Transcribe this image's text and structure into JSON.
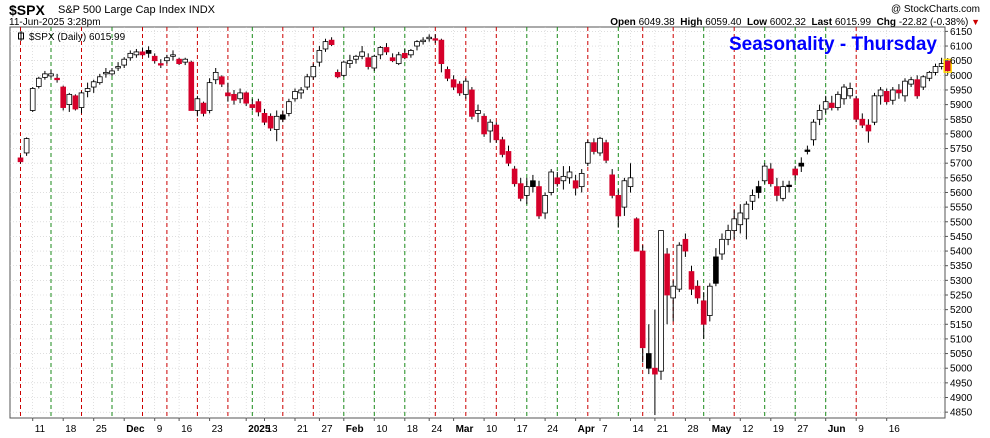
{
  "header": {
    "ticker": "$SPX",
    "name": "S&P 500 Large Cap Index",
    "exchange": "INDX",
    "date": "11-Jun-2025 3:28pm",
    "credit": "@ StockCharts.com",
    "open_label": "Open",
    "open": "6049.38",
    "high_label": "High",
    "high": "6059.40",
    "low_label": "Low",
    "low": "6002.32",
    "last_label": "Last",
    "last": "6015.99",
    "chg_label": "Chg",
    "chg": "-22.82 (-0.38%)"
  },
  "legend": {
    "text": "$SPX (Daily) 6015.99"
  },
  "colors": {
    "up": "#ffffff",
    "down": "#d6002a",
    "neutral": "#000000",
    "grid": "#cccccc",
    "green_line": "#1a8a1a",
    "red_line": "#cc0000",
    "title": "#0000ff"
  },
  "chart_data": {
    "type": "candlestick",
    "title": "Seasonality - Thursday",
    "ylim": [
      4830,
      6165
    ],
    "y_ticks": [
      4850,
      4900,
      4950,
      5000,
      5050,
      5100,
      5150,
      5200,
      5250,
      5300,
      5350,
      5400,
      5450,
      5500,
      5550,
      5600,
      5650,
      5700,
      5750,
      5800,
      5850,
      5900,
      5950,
      6000,
      6050,
      6100,
      6150
    ],
    "x_ticks": [
      {
        "label": "11",
        "bold": false
      },
      {
        "label": "18",
        "bold": false
      },
      {
        "label": "25",
        "bold": false
      },
      {
        "label": "Dec",
        "bold": true
      },
      {
        "label": "9",
        "bold": false
      },
      {
        "label": "16",
        "bold": false
      },
      {
        "label": "23",
        "bold": false
      },
      {
        "label": "2025",
        "bold": true
      },
      {
        "label": "13",
        "bold": false
      },
      {
        "label": "21",
        "bold": false
      },
      {
        "label": "27",
        "bold": false
      },
      {
        "label": "Feb",
        "bold": true
      },
      {
        "label": "10",
        "bold": false
      },
      {
        "label": "18",
        "bold": false
      },
      {
        "label": "24",
        "bold": false
      },
      {
        "label": "Mar",
        "bold": true
      },
      {
        "label": "10",
        "bold": false
      },
      {
        "label": "17",
        "bold": false
      },
      {
        "label": "24",
        "bold": false
      },
      {
        "label": "Apr",
        "bold": true
      },
      {
        "label": "7",
        "bold": false
      },
      {
        "label": "14",
        "bold": false
      },
      {
        "label": "21",
        "bold": false
      },
      {
        "label": "28",
        "bold": false
      },
      {
        "label": "May",
        "bold": true
      },
      {
        "label": "12",
        "bold": false
      },
      {
        "label": "19",
        "bold": false
      },
      {
        "label": "27",
        "bold": false
      },
      {
        "label": "Jun",
        "bold": true
      },
      {
        "label": "9",
        "bold": false
      },
      {
        "label": "16",
        "bold": false
      }
    ],
    "tick_days": [
      2,
      7,
      12,
      17,
      22,
      26,
      31,
      37,
      40,
      45,
      49,
      53,
      58,
      63,
      67,
      71,
      76,
      81,
      86,
      91,
      95,
      100,
      104,
      109,
      113,
      118,
      123,
      127,
      132,
      137,
      142
    ],
    "thursday_markers": [
      {
        "d": 0,
        "c": "r"
      },
      {
        "d": 5,
        "c": "g"
      },
      {
        "d": 10,
        "c": "r"
      },
      {
        "d": 15,
        "c": "g"
      },
      {
        "d": 20,
        "c": "r"
      },
      {
        "d": 24,
        "c": "r"
      },
      {
        "d": 29,
        "c": "r"
      },
      {
        "d": 34,
        "c": "r"
      },
      {
        "d": 38,
        "c": "g"
      },
      {
        "d": 43,
        "c": "r"
      },
      {
        "d": 48,
        "c": "r"
      },
      {
        "d": 53,
        "c": "g"
      },
      {
        "d": 58,
        "c": "g"
      },
      {
        "d": 63,
        "c": "g"
      },
      {
        "d": 68,
        "c": "r"
      },
      {
        "d": 73,
        "c": "r"
      },
      {
        "d": 78,
        "c": "r"
      },
      {
        "d": 83,
        "c": "g"
      },
      {
        "d": 88,
        "c": "g"
      },
      {
        "d": 93,
        "c": "r"
      },
      {
        "d": 98,
        "c": "g"
      },
      {
        "d": 102,
        "c": "r"
      },
      {
        "d": 107,
        "c": "r"
      },
      {
        "d": 112,
        "c": "g"
      },
      {
        "d": 117,
        "c": "r"
      },
      {
        "d": 122,
        "c": "g"
      },
      {
        "d": 127,
        "c": "g"
      },
      {
        "d": 132,
        "c": "g"
      },
      {
        "d": 137,
        "c": "r"
      }
    ],
    "candles": [
      [
        5718,
        5728,
        5699,
        5705,
        "r"
      ],
      [
        5735,
        5788,
        5725,
        5784,
        "u"
      ],
      [
        5880,
        5960,
        5875,
        5955,
        "u"
      ],
      [
        5962,
        5995,
        5955,
        5990,
        "u"
      ],
      [
        5993,
        6015,
        5985,
        6005,
        "u"
      ],
      [
        6005,
        6018,
        5990,
        5998,
        "u"
      ],
      [
        5990,
        6005,
        5975,
        5985,
        "r"
      ],
      [
        5960,
        5965,
        5880,
        5890,
        "r"
      ],
      [
        5900,
        5940,
        5875,
        5935,
        "u"
      ],
      [
        5930,
        5935,
        5880,
        5885,
        "r"
      ],
      [
        5890,
        5945,
        5870,
        5940,
        "u"
      ],
      [
        5945,
        5975,
        5925,
        5955,
        "u"
      ],
      [
        5960,
        5985,
        5940,
        5978,
        "u"
      ],
      [
        5975,
        6005,
        5968,
        5995,
        "u"
      ],
      [
        6005,
        6025,
        5992,
        6010,
        "u"
      ],
      [
        6005,
        6025,
        5998,
        6015,
        "u"
      ],
      [
        6025,
        6045,
        6015,
        6030,
        "u"
      ],
      [
        6035,
        6062,
        6025,
        6055,
        "u"
      ],
      [
        6060,
        6085,
        6050,
        6075,
        "u"
      ],
      [
        6070,
        6090,
        6060,
        6080,
        "u"
      ],
      [
        6080,
        6095,
        6065,
        6070,
        "r"
      ],
      [
        6075,
        6099,
        6060,
        6085,
        "n"
      ],
      [
        6065,
        6075,
        6040,
        6050,
        "r"
      ],
      [
        6040,
        6055,
        6025,
        6035,
        "r"
      ],
      [
        6050,
        6070,
        6040,
        6060,
        "u"
      ],
      [
        6065,
        6085,
        6050,
        6070,
        "u"
      ],
      [
        6055,
        6060,
        6035,
        6040,
        "r"
      ],
      [
        6045,
        6060,
        6035,
        6055,
        "u"
      ],
      [
        6045,
        6050,
        5880,
        5880,
        "r"
      ],
      [
        5880,
        5930,
        5860,
        5920,
        "u"
      ],
      [
        5905,
        5910,
        5860,
        5870,
        "r"
      ],
      [
        5880,
        5990,
        5870,
        5975,
        "u"
      ],
      [
        5985,
        6025,
        5970,
        6010,
        "u"
      ],
      [
        5995,
        6000,
        5960,
        5970,
        "r"
      ],
      [
        5940,
        5975,
        5910,
        5930,
        "r"
      ],
      [
        5935,
        5950,
        5900,
        5915,
        "r"
      ],
      [
        5920,
        5955,
        5905,
        5940,
        "u"
      ],
      [
        5940,
        5945,
        5895,
        5905,
        "r"
      ],
      [
        5900,
        5920,
        5880,
        5890,
        "r"
      ],
      [
        5910,
        5920,
        5860,
        5875,
        "r"
      ],
      [
        5870,
        5885,
        5830,
        5840,
        "r"
      ],
      [
        5860,
        5870,
        5810,
        5820,
        "r"
      ],
      [
        5815,
        5880,
        5775,
        5860,
        "u"
      ],
      [
        5865,
        5880,
        5840,
        5850,
        "n"
      ],
      [
        5870,
        5920,
        5860,
        5910,
        "u"
      ],
      [
        5920,
        5955,
        5910,
        5945,
        "u"
      ],
      [
        5940,
        5960,
        5920,
        5950,
        "u"
      ],
      [
        5960,
        6005,
        5950,
        5995,
        "u"
      ],
      [
        5995,
        6040,
        5985,
        6030,
        "u"
      ],
      [
        6045,
        6100,
        6030,
        6085,
        "u"
      ],
      [
        6090,
        6125,
        6080,
        6115,
        "u"
      ],
      [
        6120,
        6130,
        6100,
        6105,
        "r"
      ],
      [
        6010,
        6020,
        5990,
        5995,
        "r"
      ],
      [
        6000,
        6050,
        5995,
        6045,
        "u"
      ],
      [
        6040,
        6070,
        6025,
        6050,
        "u"
      ],
      [
        6055,
        6070,
        6040,
        6065,
        "u"
      ],
      [
        6065,
        6100,
        6055,
        6080,
        "u"
      ],
      [
        6060,
        6075,
        6020,
        6030,
        "r"
      ],
      [
        6025,
        6070,
        6015,
        6065,
        "u"
      ],
      [
        6070,
        6100,
        6055,
        6095,
        "u"
      ],
      [
        6095,
        6110,
        6070,
        6080,
        "r"
      ],
      [
        6060,
        6075,
        6045,
        6050,
        "r"
      ],
      [
        6040,
        6080,
        6035,
        6070,
        "u"
      ],
      [
        6075,
        6090,
        6055,
        6060,
        "r"
      ],
      [
        6070,
        6090,
        6060,
        6085,
        "u"
      ],
      [
        6100,
        6120,
        6085,
        6115,
        "u"
      ],
      [
        6115,
        6130,
        6105,
        6120,
        "u"
      ],
      [
        6125,
        6140,
        6115,
        6130,
        "u"
      ],
      [
        6125,
        6140,
        6110,
        6120,
        "r"
      ],
      [
        6120,
        6125,
        6010,
        6040,
        "r"
      ],
      [
        6020,
        6030,
        5980,
        5990,
        "r"
      ],
      [
        5985,
        6000,
        5950,
        5960,
        "r"
      ],
      [
        5970,
        5980,
        5930,
        5940,
        "r"
      ],
      [
        5935,
        5990,
        5920,
        5980,
        "u"
      ],
      [
        5950,
        5960,
        5850,
        5860,
        "r"
      ],
      [
        5870,
        5900,
        5840,
        5880,
        "u"
      ],
      [
        5860,
        5870,
        5790,
        5800,
        "r"
      ],
      [
        5810,
        5850,
        5770,
        5840,
        "u"
      ],
      [
        5830,
        5840,
        5770,
        5780,
        "r"
      ],
      [
        5780,
        5790,
        5720,
        5730,
        "r"
      ],
      [
        5740,
        5760,
        5690,
        5700,
        "r"
      ],
      [
        5680,
        5690,
        5620,
        5630,
        "r"
      ],
      [
        5630,
        5650,
        5570,
        5580,
        "r"
      ],
      [
        5590,
        5650,
        5560,
        5620,
        "u"
      ],
      [
        5620,
        5660,
        5600,
        5640,
        "n"
      ],
      [
        5620,
        5640,
        5510,
        5520,
        "r"
      ],
      [
        5530,
        5600,
        5510,
        5590,
        "u"
      ],
      [
        5600,
        5680,
        5590,
        5670,
        "u"
      ],
      [
        5650,
        5670,
        5620,
        5630,
        "r"
      ],
      [
        5640,
        5690,
        5610,
        5655,
        "u"
      ],
      [
        5650,
        5690,
        5630,
        5670,
        "u"
      ],
      [
        5640,
        5660,
        5590,
        5615,
        "r"
      ],
      [
        5620,
        5680,
        5600,
        5665,
        "u"
      ],
      [
        5700,
        5780,
        5690,
        5770,
        "u"
      ],
      [
        5770,
        5785,
        5730,
        5740,
        "r"
      ],
      [
        5735,
        5790,
        5725,
        5785,
        "u"
      ],
      [
        5770,
        5780,
        5700,
        5710,
        "r"
      ],
      [
        5660,
        5680,
        5580,
        5590,
        "r"
      ],
      [
        5590,
        5610,
        5480,
        5520,
        "r"
      ],
      [
        5550,
        5650,
        5520,
        5640,
        "u"
      ],
      [
        5650,
        5700,
        5600,
        5620,
        "u"
      ],
      [
        5510,
        5515,
        5400,
        5400,
        "r"
      ],
      [
        5400,
        5420,
        5020,
        5070,
        "r"
      ],
      [
        5050,
        5150,
        4980,
        5000,
        "n"
      ],
      [
        5000,
        5200,
        4840,
        4980,
        "r"
      ],
      [
        4990,
        5470,
        4960,
        5470,
        "u"
      ],
      [
        5390,
        5410,
        5150,
        5250,
        "r"
      ],
      [
        5240,
        5300,
        5160,
        5280,
        "u"
      ],
      [
        5270,
        5430,
        5260,
        5420,
        "u"
      ],
      [
        5440,
        5460,
        5380,
        5400,
        "r"
      ],
      [
        5330,
        5350,
        5250,
        5270,
        "r"
      ],
      [
        5280,
        5300,
        5220,
        5240,
        "r"
      ],
      [
        5230,
        5260,
        5100,
        5150,
        "r"
      ],
      [
        5180,
        5290,
        5160,
        5280,
        "u"
      ],
      [
        5290,
        5410,
        5280,
        5380,
        "n"
      ],
      [
        5390,
        5460,
        5370,
        5440,
        "u"
      ],
      [
        5440,
        5490,
        5420,
        5470,
        "u"
      ],
      [
        5470,
        5540,
        5440,
        5510,
        "u"
      ],
      [
        5490,
        5560,
        5460,
        5530,
        "u"
      ],
      [
        5510,
        5570,
        5440,
        5560,
        "u"
      ],
      [
        5570,
        5610,
        5540,
        5590,
        "u"
      ],
      [
        5620,
        5640,
        5580,
        5600,
        "n"
      ],
      [
        5640,
        5700,
        5630,
        5690,
        "u"
      ],
      [
        5680,
        5700,
        5620,
        5630,
        "r"
      ],
      [
        5620,
        5650,
        5570,
        5590,
        "r"
      ],
      [
        5580,
        5640,
        5570,
        5620,
        "u"
      ],
      [
        5620,
        5640,
        5600,
        5625,
        "n"
      ],
      [
        5660,
        5690,
        5640,
        5680,
        "r"
      ],
      [
        5690,
        5720,
        5670,
        5700,
        "n"
      ],
      [
        5740,
        5760,
        5730,
        5745,
        "n"
      ],
      [
        5780,
        5850,
        5760,
        5840,
        "u"
      ],
      [
        5850,
        5900,
        5830,
        5880,
        "u"
      ],
      [
        5885,
        5930,
        5870,
        5910,
        "u"
      ],
      [
        5905,
        5930,
        5880,
        5890,
        "r"
      ],
      [
        5890,
        5945,
        5880,
        5935,
        "u"
      ],
      [
        5920,
        5970,
        5900,
        5960,
        "u"
      ],
      [
        5955,
        5975,
        5920,
        5930,
        "u"
      ],
      [
        5920,
        5930,
        5840,
        5850,
        "r"
      ],
      [
        5850,
        5870,
        5820,
        5830,
        "r"
      ],
      [
        5830,
        5850,
        5770,
        5810,
        "r"
      ],
      [
        5840,
        5940,
        5830,
        5930,
        "u"
      ],
      [
        5930,
        5960,
        5900,
        5950,
        "u"
      ],
      [
        5945,
        5955,
        5900,
        5910,
        "r"
      ],
      [
        5915,
        5960,
        5900,
        5950,
        "u"
      ],
      [
        5950,
        5970,
        5920,
        5940,
        "r"
      ],
      [
        5930,
        5990,
        5910,
        5980,
        "u"
      ],
      [
        5970,
        5995,
        5960,
        5985,
        "u"
      ],
      [
        5985,
        6000,
        5920,
        5930,
        "r"
      ],
      [
        5960,
        6000,
        5950,
        5995,
        "u"
      ],
      [
        5990,
        6015,
        5980,
        6010,
        "u"
      ],
      [
        6010,
        6040,
        6000,
        6030,
        "u"
      ],
      [
        6030,
        6060,
        6020,
        6040,
        "u"
      ],
      [
        6049,
        6059,
        6002,
        6016,
        "r"
      ]
    ]
  }
}
